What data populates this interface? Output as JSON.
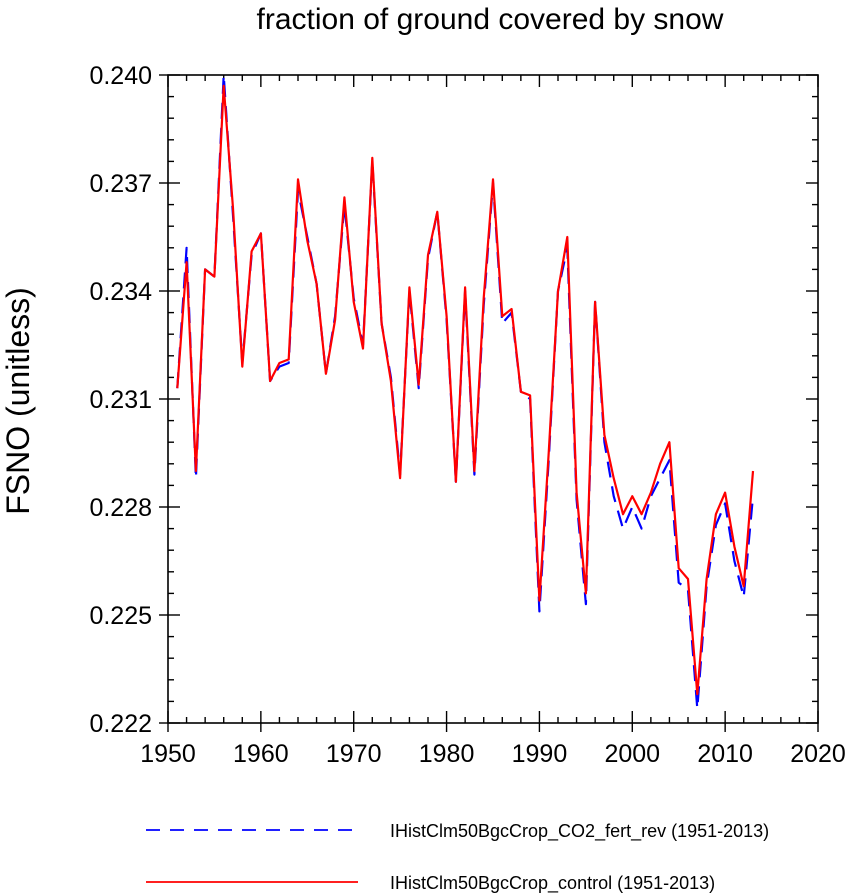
{
  "chart_data": {
    "type": "line",
    "title": "fraction of ground covered by snow",
    "xlabel": "",
    "ylabel": "FSNO  (unitless)",
    "xlim": [
      1950,
      2020
    ],
    "ylim": [
      0.222,
      0.24
    ],
    "x_ticks": [
      "1950",
      "1960",
      "1970",
      "1980",
      "1990",
      "2000",
      "2010",
      "2020"
    ],
    "y_ticks": [
      "0.222",
      "0.225",
      "0.228",
      "0.231",
      "0.234",
      "0.237",
      "0.240"
    ],
    "x": [
      1951,
      1952,
      1953,
      1954,
      1955,
      1956,
      1957,
      1958,
      1959,
      1960,
      1961,
      1962,
      1963,
      1964,
      1965,
      1966,
      1967,
      1968,
      1969,
      1970,
      1971,
      1972,
      1973,
      1974,
      1975,
      1976,
      1977,
      1978,
      1979,
      1980,
      1981,
      1982,
      1983,
      1984,
      1985,
      1986,
      1987,
      1988,
      1989,
      1990,
      1991,
      1992,
      1993,
      1994,
      1995,
      1996,
      1997,
      1998,
      1999,
      2000,
      2001,
      2002,
      2003,
      2004,
      2005,
      2006,
      2007,
      2008,
      2009,
      2010,
      2011,
      2012,
      2013
    ],
    "series": [
      {
        "name": "IHistClm50BgcCrop_CO2_fert_rev (1951-2013)",
        "color": "#0000ff",
        "style": "dashed",
        "values": [
          0.2313,
          0.2352,
          0.2288,
          0.2346,
          0.2344,
          0.24,
          0.2361,
          0.232,
          0.235,
          0.2356,
          0.2315,
          0.2319,
          0.232,
          0.2368,
          0.2355,
          0.2342,
          0.2317,
          0.2333,
          0.2364,
          0.2338,
          0.2325,
          0.2376,
          0.2331,
          0.2316,
          0.2289,
          0.234,
          0.2313,
          0.2349,
          0.2362,
          0.2332,
          0.2287,
          0.234,
          0.2289,
          0.2336,
          0.237,
          0.2331,
          0.2334,
          0.2312,
          0.231,
          0.2251,
          0.2293,
          0.234,
          0.2352,
          0.2282,
          0.2253,
          0.2337,
          0.2298,
          0.2283,
          0.2274,
          0.228,
          0.2274,
          0.2283,
          0.2288,
          0.2293,
          0.2259,
          0.2257,
          0.2224,
          0.2258,
          0.2275,
          0.2281,
          0.2265,
          0.2255,
          0.2283
        ]
      },
      {
        "name": "IHistClm50BgcCrop_control (1951-2013)",
        "color": "#ff0000",
        "style": "solid",
        "values": [
          0.2313,
          0.2348,
          0.229,
          0.2346,
          0.2344,
          0.2397,
          0.2363,
          0.2319,
          0.2351,
          0.2356,
          0.2315,
          0.232,
          0.2321,
          0.2371,
          0.2354,
          0.2342,
          0.2317,
          0.2332,
          0.2366,
          0.2337,
          0.2324,
          0.2377,
          0.2331,
          0.2315,
          0.2288,
          0.2341,
          0.2314,
          0.235,
          0.2362,
          0.2333,
          0.2287,
          0.2341,
          0.229,
          0.2338,
          0.2371,
          0.2333,
          0.2335,
          0.2312,
          0.2311,
          0.2254,
          0.2295,
          0.234,
          0.2355,
          0.2284,
          0.2256,
          0.2337,
          0.23,
          0.2288,
          0.2278,
          0.2283,
          0.2278,
          0.2284,
          0.2292,
          0.2298,
          0.2263,
          0.226,
          0.2228,
          0.226,
          0.2278,
          0.2284,
          0.2269,
          0.2258,
          0.229
        ]
      }
    ],
    "legend_position": "bottom",
    "grid": false
  }
}
